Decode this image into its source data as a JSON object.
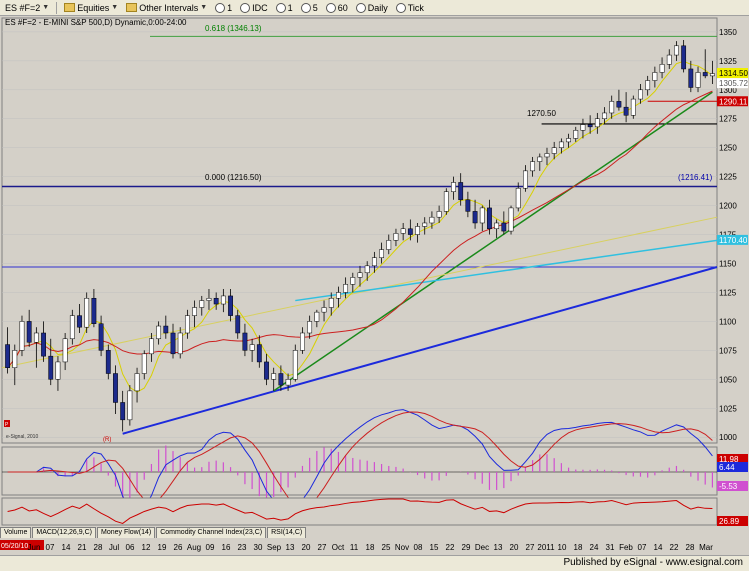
{
  "toolbar": {
    "symbol": "ES #F=2",
    "equities": "Equities",
    "other_intervals": "Other Intervals",
    "interval_1": "1",
    "interval_idc": "IDC",
    "interval_1b": "1",
    "interval_5": "5",
    "interval_60": "60",
    "interval_daily": "Daily",
    "interval_tick": "Tick"
  },
  "chart_title": "ES #F=2 - E-MINI S&P 500,D) Dynamic,0:00-24:00",
  "fib_label": "0.618 (1346.13)",
  "fib_label2": "0.000 (1216.50)",
  "fib_right_label": "(1216.41)",
  "support_label": "1270.50",
  "price_tags": [
    "1314.50",
    "1305.72",
    "1290.11",
    "1170.40"
  ],
  "watermark": "e-Signal, 2010",
  "marker_r": "(R)",
  "marker_p": "P",
  "osc_labels": [
    "11.98",
    "6.44",
    "-5.53"
  ],
  "rsi_label": "26.89",
  "tabs": [
    "Volume",
    "MACD(12,26,9,C)",
    "Money Flow(14)",
    "Commodity Channel Index(23,C)",
    "RSI(14,C)"
  ],
  "date_start": "05/20/10",
  "x_labels": [
    "Jun",
    "07",
    "14",
    "21",
    "28",
    "Jul",
    "06",
    "12",
    "19",
    "26",
    "Aug",
    "09",
    "16",
    "23",
    "30",
    "Sep",
    "13",
    "20",
    "27",
    "Oct",
    "11",
    "18",
    "25",
    "Nov",
    "08",
    "15",
    "22",
    "29",
    "Dec",
    "13",
    "20",
    "27",
    "2011",
    "10",
    "18",
    "24",
    "31",
    "Feb",
    "07",
    "14",
    "22",
    "28",
    "Mar"
  ],
  "footer": "Published by eSignal - www.esignal.com",
  "colors": {
    "up": "#ffffff",
    "down": "#1c2a8c",
    "fast_ma": "#d8d000",
    "slow_ma": "#cc2020",
    "grid": "#c8c8c8"
  },
  "chart_data": {
    "type": "candlestick",
    "y_ticks": [
      1000,
      1025,
      1050,
      1075,
      1100,
      1125,
      1150,
      1175,
      1200,
      1225,
      1250,
      1275,
      1300,
      1325,
      1350
    ],
    "ylim": [
      995,
      1362
    ],
    "bars": [
      {
        "o": 1080,
        "h": 1095,
        "l": 1055,
        "c": 1060
      },
      {
        "o": 1060,
        "h": 1080,
        "l": 1045,
        "c": 1075
      },
      {
        "o": 1075,
        "h": 1105,
        "l": 1070,
        "c": 1100
      },
      {
        "o": 1100,
        "h": 1110,
        "l": 1078,
        "c": 1082
      },
      {
        "o": 1082,
        "h": 1095,
        "l": 1060,
        "c": 1090
      },
      {
        "o": 1090,
        "h": 1100,
        "l": 1065,
        "c": 1070
      },
      {
        "o": 1070,
        "h": 1085,
        "l": 1045,
        "c": 1050
      },
      {
        "o": 1050,
        "h": 1070,
        "l": 1040,
        "c": 1065
      },
      {
        "o": 1065,
        "h": 1090,
        "l": 1058,
        "c": 1085
      },
      {
        "o": 1085,
        "h": 1110,
        "l": 1080,
        "c": 1105
      },
      {
        "o": 1105,
        "h": 1115,
        "l": 1090,
        "c": 1095
      },
      {
        "o": 1095,
        "h": 1125,
        "l": 1090,
        "c": 1120
      },
      {
        "o": 1120,
        "h": 1128,
        "l": 1095,
        "c": 1098
      },
      {
        "o": 1098,
        "h": 1105,
        "l": 1070,
        "c": 1075
      },
      {
        "o": 1075,
        "h": 1080,
        "l": 1050,
        "c": 1055
      },
      {
        "o": 1055,
        "h": 1062,
        "l": 1020,
        "c": 1030
      },
      {
        "o": 1030,
        "h": 1040,
        "l": 1005,
        "c": 1015
      },
      {
        "o": 1015,
        "h": 1045,
        "l": 1010,
        "c": 1040
      },
      {
        "o": 1040,
        "h": 1060,
        "l": 1030,
        "c": 1055
      },
      {
        "o": 1055,
        "h": 1075,
        "l": 1050,
        "c": 1072
      },
      {
        "o": 1072,
        "h": 1090,
        "l": 1065,
        "c": 1085
      },
      {
        "o": 1085,
        "h": 1100,
        "l": 1080,
        "c": 1096
      },
      {
        "o": 1096,
        "h": 1105,
        "l": 1085,
        "c": 1090
      },
      {
        "o": 1090,
        "h": 1098,
        "l": 1068,
        "c": 1072
      },
      {
        "o": 1072,
        "h": 1095,
        "l": 1068,
        "c": 1090
      },
      {
        "o": 1090,
        "h": 1110,
        "l": 1085,
        "c": 1105
      },
      {
        "o": 1105,
        "h": 1118,
        "l": 1095,
        "c": 1112
      },
      {
        "o": 1112,
        "h": 1122,
        "l": 1105,
        "c": 1118
      },
      {
        "o": 1118,
        "h": 1128,
        "l": 1110,
        "c": 1120
      },
      {
        "o": 1120,
        "h": 1125,
        "l": 1110,
        "c": 1115
      },
      {
        "o": 1115,
        "h": 1128,
        "l": 1108,
        "c": 1122
      },
      {
        "o": 1122,
        "h": 1128,
        "l": 1100,
        "c": 1105
      },
      {
        "o": 1105,
        "h": 1110,
        "l": 1085,
        "c": 1090
      },
      {
        "o": 1090,
        "h": 1098,
        "l": 1070,
        "c": 1075
      },
      {
        "o": 1075,
        "h": 1085,
        "l": 1065,
        "c": 1080
      },
      {
        "o": 1080,
        "h": 1088,
        "l": 1060,
        "c": 1065
      },
      {
        "o": 1065,
        "h": 1072,
        "l": 1045,
        "c": 1050
      },
      {
        "o": 1050,
        "h": 1060,
        "l": 1040,
        "c": 1055
      },
      {
        "o": 1055,
        "h": 1062,
        "l": 1040,
        "c": 1045
      },
      {
        "o": 1045,
        "h": 1055,
        "l": 1040,
        "c": 1050
      },
      {
        "o": 1050,
        "h": 1080,
        "l": 1048,
        "c": 1075
      },
      {
        "o": 1075,
        "h": 1095,
        "l": 1072,
        "c": 1090
      },
      {
        "o": 1090,
        "h": 1105,
        "l": 1085,
        "c": 1100
      },
      {
        "o": 1100,
        "h": 1110,
        "l": 1095,
        "c": 1108
      },
      {
        "o": 1108,
        "h": 1118,
        "l": 1100,
        "c": 1112
      },
      {
        "o": 1112,
        "h": 1125,
        "l": 1105,
        "c": 1120
      },
      {
        "o": 1120,
        "h": 1130,
        "l": 1112,
        "c": 1125
      },
      {
        "o": 1125,
        "h": 1138,
        "l": 1120,
        "c": 1132
      },
      {
        "o": 1132,
        "h": 1142,
        "l": 1125,
        "c": 1138
      },
      {
        "o": 1138,
        "h": 1148,
        "l": 1130,
        "c": 1142
      },
      {
        "o": 1142,
        "h": 1152,
        "l": 1135,
        "c": 1148
      },
      {
        "o": 1148,
        "h": 1160,
        "l": 1142,
        "c": 1155
      },
      {
        "o": 1155,
        "h": 1168,
        "l": 1150,
        "c": 1162
      },
      {
        "o": 1162,
        "h": 1175,
        "l": 1158,
        "c": 1170
      },
      {
        "o": 1170,
        "h": 1180,
        "l": 1165,
        "c": 1176
      },
      {
        "o": 1176,
        "h": 1185,
        "l": 1170,
        "c": 1180
      },
      {
        "o": 1180,
        "h": 1188,
        "l": 1170,
        "c": 1175
      },
      {
        "o": 1175,
        "h": 1185,
        "l": 1168,
        "c": 1182
      },
      {
        "o": 1182,
        "h": 1190,
        "l": 1175,
        "c": 1185
      },
      {
        "o": 1185,
        "h": 1195,
        "l": 1180,
        "c": 1190
      },
      {
        "o": 1190,
        "h": 1200,
        "l": 1185,
        "c": 1195
      },
      {
        "o": 1195,
        "h": 1215,
        "l": 1192,
        "c": 1212
      },
      {
        "o": 1212,
        "h": 1225,
        "l": 1205,
        "c": 1220
      },
      {
        "o": 1220,
        "h": 1228,
        "l": 1200,
        "c": 1205
      },
      {
        "o": 1205,
        "h": 1212,
        "l": 1190,
        "c": 1195
      },
      {
        "o": 1195,
        "h": 1205,
        "l": 1180,
        "c": 1185
      },
      {
        "o": 1185,
        "h": 1200,
        "l": 1178,
        "c": 1198
      },
      {
        "o": 1198,
        "h": 1205,
        "l": 1175,
        "c": 1180
      },
      {
        "o": 1180,
        "h": 1188,
        "l": 1172,
        "c": 1185
      },
      {
        "o": 1185,
        "h": 1195,
        "l": 1175,
        "c": 1178
      },
      {
        "o": 1178,
        "h": 1200,
        "l": 1175,
        "c": 1198
      },
      {
        "o": 1198,
        "h": 1220,
        "l": 1195,
        "c": 1215
      },
      {
        "o": 1215,
        "h": 1235,
        "l": 1212,
        "c": 1230
      },
      {
        "o": 1230,
        "h": 1242,
        "l": 1225,
        "c": 1238
      },
      {
        "o": 1238,
        "h": 1245,
        "l": 1230,
        "c": 1242
      },
      {
        "o": 1242,
        "h": 1250,
        "l": 1235,
        "c": 1245
      },
      {
        "o": 1245,
        "h": 1255,
        "l": 1240,
        "c": 1250
      },
      {
        "o": 1250,
        "h": 1258,
        "l": 1245,
        "c": 1255
      },
      {
        "o": 1255,
        "h": 1262,
        "l": 1250,
        "c": 1258
      },
      {
        "o": 1258,
        "h": 1268,
        "l": 1255,
        "c": 1265
      },
      {
        "o": 1265,
        "h": 1275,
        "l": 1258,
        "c": 1270
      },
      {
        "o": 1270,
        "h": 1278,
        "l": 1262,
        "c": 1268
      },
      {
        "o": 1268,
        "h": 1280,
        "l": 1262,
        "c": 1275
      },
      {
        "o": 1275,
        "h": 1285,
        "l": 1270,
        "c": 1280
      },
      {
        "o": 1280,
        "h": 1295,
        "l": 1275,
        "c": 1290
      },
      {
        "o": 1290,
        "h": 1300,
        "l": 1282,
        "c": 1285
      },
      {
        "o": 1285,
        "h": 1298,
        "l": 1272,
        "c": 1278
      },
      {
        "o": 1278,
        "h": 1295,
        "l": 1275,
        "c": 1292
      },
      {
        "o": 1292,
        "h": 1305,
        "l": 1288,
        "c": 1300
      },
      {
        "o": 1300,
        "h": 1312,
        "l": 1295,
        "c": 1308
      },
      {
        "o": 1308,
        "h": 1320,
        "l": 1302,
        "c": 1315
      },
      {
        "o": 1315,
        "h": 1328,
        "l": 1310,
        "c": 1322
      },
      {
        "o": 1322,
        "h": 1335,
        "l": 1318,
        "c": 1330
      },
      {
        "o": 1330,
        "h": 1342,
        "l": 1325,
        "c": 1338
      },
      {
        "o": 1338,
        "h": 1343,
        "l": 1315,
        "c": 1318
      },
      {
        "o": 1318,
        "h": 1325,
        "l": 1298,
        "c": 1302
      },
      {
        "o": 1302,
        "h": 1320,
        "l": 1298,
        "c": 1315
      },
      {
        "o": 1315,
        "h": 1335,
        "l": 1310,
        "c": 1312
      },
      {
        "o": 1312,
        "h": 1325,
        "l": 1305,
        "c": 1314
      }
    ],
    "fib_0618": 1346.13,
    "fib_0000": 1216.5,
    "support": 1270.5,
    "resist_red": 1290.11
  }
}
